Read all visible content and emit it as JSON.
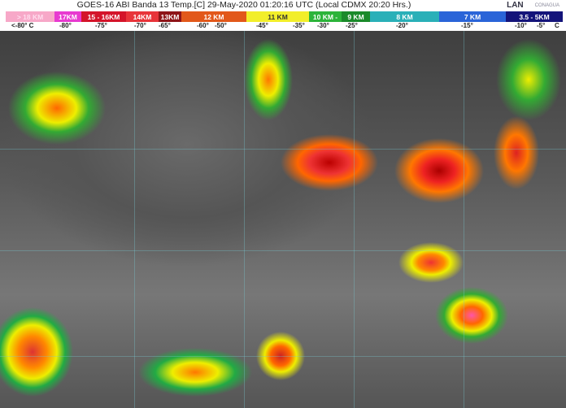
{
  "title": "GOES-16 ABI Banda 13 Temp.[C] 29-May-2020 01:20:16 UTC (Local CDMX  20:20 Hrs.)",
  "logos": {
    "lan": "LAN",
    "conagua": "CONAGUA"
  },
  "legend": [
    {
      "label": "> 18 KM",
      "color": "#f7a8c8"
    },
    {
      "label": "17KM",
      "color": "#e83ad0"
    },
    {
      "label": "15 - 16KM",
      "color": "#d4142a"
    },
    {
      "label": "14KM",
      "color": "#e8343a"
    },
    {
      "label": "13KM",
      "color": "#8e1418"
    },
    {
      "label": "12 KM",
      "color": "#e2581a"
    },
    {
      "label": "11 KM",
      "color": "#f2ee2a"
    },
    {
      "label": "10 KM -",
      "color": "#2cb43a"
    },
    {
      "label": "9 KM",
      "color": "#1a8a2a"
    },
    {
      "label": "8 KM",
      "color": "#2ab0b8"
    },
    {
      "label": "7 KM",
      "color": "#2a64d8"
    },
    {
      "label": "3.5 - 5KM",
      "color": "#14147a"
    }
  ],
  "temps": [
    "<-80° C",
    "-80°",
    "-75°",
    "-70°",
    "-65°",
    "-60°",
    "-50°",
    "-45°",
    "-35°",
    "-30°",
    "-25°",
    "-20°",
    "-15°",
    "-10°",
    "-5°",
    "C"
  ]
}
